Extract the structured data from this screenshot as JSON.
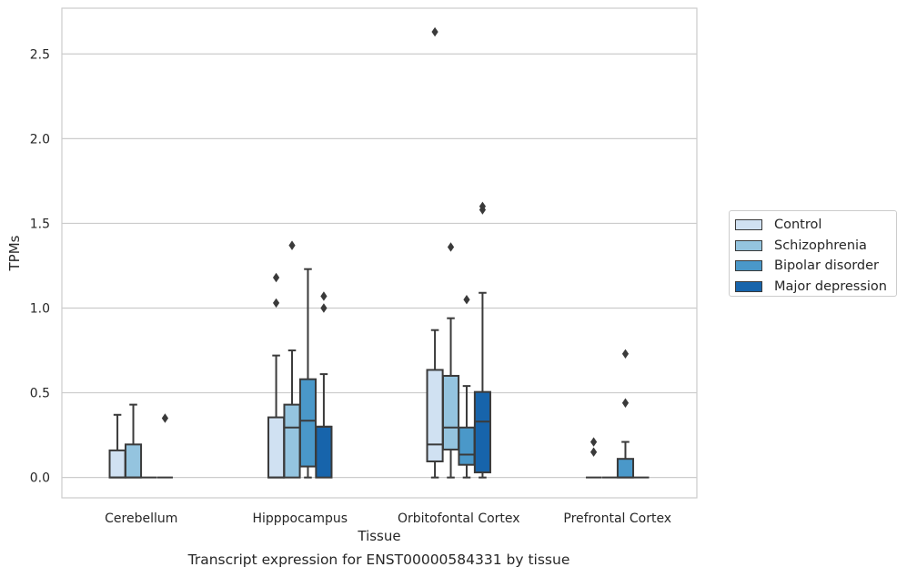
{
  "caption": "Transcript expression for ENST00000584331 by tissue",
  "chart_data": {
    "type": "box",
    "xlabel": "Tissue",
    "ylabel": "TPMs",
    "ylim": [
      -0.12,
      2.77
    ],
    "yticks": [
      0.0,
      0.5,
      1.0,
      1.5,
      2.0,
      2.5
    ],
    "ytick_labels": [
      "0.0",
      "0.5",
      "1.0",
      "1.5",
      "2.0",
      "2.5"
    ],
    "grid": "horizontal",
    "legend_position": "right",
    "categories": [
      "Cerebellum",
      "Hipppocampus",
      "Orbitofontal Cortex",
      "Prefrontal Cortex"
    ],
    "series": [
      {
        "name": "Control",
        "color": "#d0e1f2",
        "boxes": [
          {
            "whislo": 0.0,
            "q1": 0.0,
            "med": 0.0,
            "q3": 0.16,
            "whishi": 0.37,
            "fliers": []
          },
          {
            "whislo": 0.0,
            "q1": 0.0,
            "med": 0.0,
            "q3": 0.355,
            "whishi": 0.72,
            "fliers": [
              1.03,
              1.18
            ]
          },
          {
            "whislo": 0.0,
            "q1": 0.095,
            "med": 0.195,
            "q3": 0.635,
            "whishi": 0.87,
            "fliers": [
              2.63
            ]
          },
          {
            "whislo": 0.0,
            "q1": 0.0,
            "med": 0.0,
            "q3": 0.0,
            "whishi": 0.0,
            "fliers": [
              0.15,
              0.21
            ]
          }
        ]
      },
      {
        "name": "Schizophrenia",
        "color": "#94c4df",
        "boxes": [
          {
            "whislo": 0.0,
            "q1": 0.0,
            "med": 0.0,
            "q3": 0.195,
            "whishi": 0.43,
            "fliers": []
          },
          {
            "whislo": 0.0,
            "q1": 0.0,
            "med": 0.295,
            "q3": 0.43,
            "whishi": 0.75,
            "fliers": [
              1.37
            ]
          },
          {
            "whislo": 0.0,
            "q1": 0.165,
            "med": 0.295,
            "q3": 0.6,
            "whishi": 0.94,
            "fliers": [
              1.36
            ]
          },
          {
            "whislo": 0.0,
            "q1": 0.0,
            "med": 0.0,
            "q3": 0.0,
            "whishi": 0.0,
            "fliers": []
          }
        ]
      },
      {
        "name": "Bipolar disorder",
        "color": "#4a98c9",
        "boxes": [
          {
            "whislo": 0.0,
            "q1": 0.0,
            "med": 0.0,
            "q3": 0.0,
            "whishi": 0.0,
            "fliers": []
          },
          {
            "whislo": 0.0,
            "q1": 0.065,
            "med": 0.335,
            "q3": 0.58,
            "whishi": 1.23,
            "fliers": []
          },
          {
            "whislo": 0.0,
            "q1": 0.075,
            "med": 0.135,
            "q3": 0.295,
            "whishi": 0.54,
            "fliers": [
              1.05
            ]
          },
          {
            "whislo": 0.0,
            "q1": 0.0,
            "med": 0.0,
            "q3": 0.11,
            "whishi": 0.21,
            "fliers": [
              0.44,
              0.73
            ]
          }
        ]
      },
      {
        "name": "Major depression",
        "color": "#1764ab",
        "boxes": [
          {
            "whislo": 0.0,
            "q1": 0.0,
            "med": 0.0,
            "q3": 0.0,
            "whishi": 0.0,
            "fliers": [
              0.35
            ]
          },
          {
            "whislo": 0.0,
            "q1": 0.0,
            "med": 0.3,
            "q3": 0.3,
            "whishi": 0.61,
            "fliers": [
              1.0,
              1.07
            ]
          },
          {
            "whislo": 0.0,
            "q1": 0.03,
            "med": 0.33,
            "q3": 0.505,
            "whishi": 1.09,
            "fliers": [
              1.58,
              1.6
            ]
          },
          {
            "whislo": 0.0,
            "q1": 0.0,
            "med": 0.0,
            "q3": 0.0,
            "whishi": 0.0,
            "fliers": []
          }
        ]
      }
    ]
  }
}
